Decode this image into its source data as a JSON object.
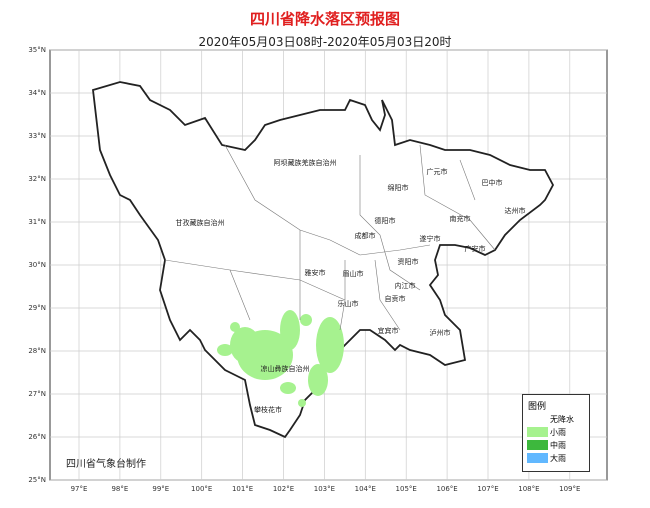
{
  "title": "四川省降水落区预报图",
  "subtitle": "2020年05月03日08时-2020年05月03日20时",
  "lat_ticks": [
    "35°N",
    "34°N",
    "33°N",
    "32°N",
    "31°N",
    "30°N",
    "29°N",
    "28°N",
    "27°N",
    "26°N",
    "25°N"
  ],
  "lon_ticks": [
    "97°E",
    "98°E",
    "99°E",
    "100°E",
    "101°E",
    "102°E",
    "103°E",
    "104°E",
    "105°E",
    "106°E",
    "107°E",
    "108°E",
    "109°E"
  ],
  "regions": [
    "阿坝藏族羌族自治州",
    "甘孜藏族自治州",
    "广元市",
    "巴中市",
    "绵阳市",
    "达州市",
    "南充市",
    "德阳市",
    "成都市",
    "遂宁市",
    "广安市",
    "资阳市",
    "雅安市",
    "眉山市",
    "内江市",
    "乐山市",
    "自贡市",
    "宜宾市",
    "泸州市",
    "凉山彝族自治州",
    "攀枝花市"
  ],
  "legend": {
    "title": "图例",
    "items": [
      {
        "label": "无降水",
        "color": "#ffffff"
      },
      {
        "label": "小雨",
        "color": "#a6f28f"
      },
      {
        "label": "中雨",
        "color": "#3db83d"
      },
      {
        "label": "大雨",
        "color": "#61b8ff"
      }
    ]
  },
  "credit": "四川省气象台制作"
}
